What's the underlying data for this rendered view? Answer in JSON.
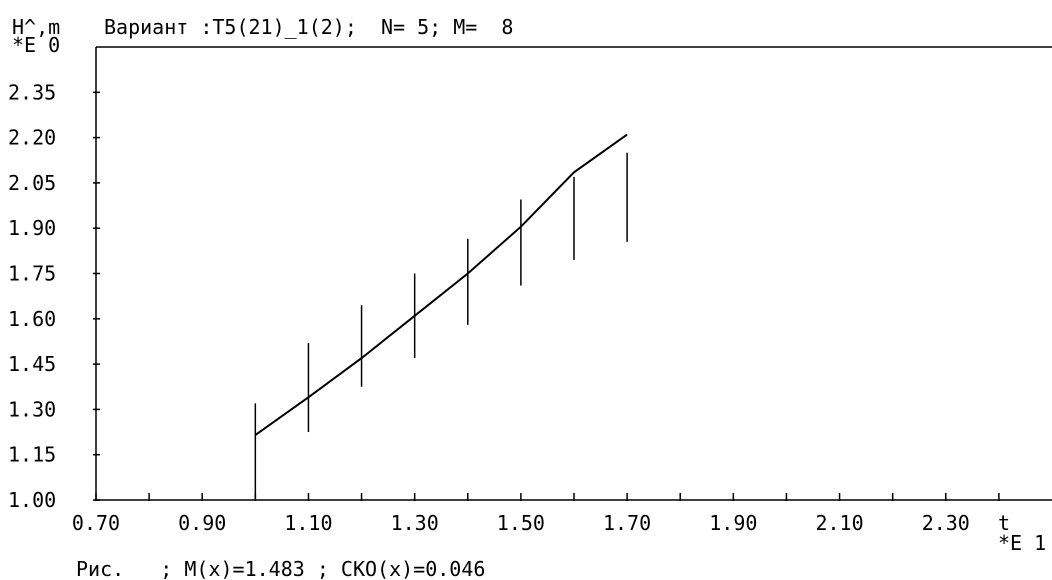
{
  "chart_data": {
    "type": "line",
    "title": "Вариант :T5(21)_1(2);  N= 5; M=  8",
    "ylabel": "H^,m",
    "y_exponent": "*E 0",
    "xlabel": "t",
    "x_exponent": "*E 1",
    "footer": "Рис.   ; M(x)=1.483 ; СКО(x)=0.046",
    "xlim": [
      0.7,
      2.5
    ],
    "ylim": [
      1.0,
      2.5
    ],
    "x_ticks": [
      0.7,
      0.8,
      0.9,
      1.0,
      1.1,
      1.2,
      1.3,
      1.4,
      1.5,
      1.6,
      1.7,
      1.8,
      1.9,
      2.0,
      2.1,
      2.2,
      2.3,
      2.4
    ],
    "x_tick_labels": [
      "0.70",
      "0.90",
      "1.10",
      "1.30",
      "1.50",
      "1.70",
      "1.90",
      "2.10",
      "2.30"
    ],
    "x_tick_label_values": [
      0.7,
      0.9,
      1.1,
      1.3,
      1.5,
      1.7,
      1.9,
      2.1,
      2.3
    ],
    "y_tick_labels": [
      "1.00",
      "1.15",
      "1.30",
      "1.45",
      "1.60",
      "1.75",
      "1.90",
      "2.05",
      "2.20",
      "2.35"
    ],
    "y_tick_values": [
      1.0,
      1.15,
      1.3,
      1.45,
      1.6,
      1.75,
      1.9,
      2.05,
      2.2,
      2.35
    ],
    "grid": false,
    "line": {
      "x": [
        1.0,
        1.1,
        1.2,
        1.3,
        1.4,
        1.5,
        1.6,
        1.7
      ],
      "y": [
        1.215,
        1.34,
        1.47,
        1.61,
        1.75,
        1.905,
        2.085,
        2.21
      ]
    },
    "error_bars": {
      "x": [
        1.0,
        1.1,
        1.2,
        1.3,
        1.4,
        1.5,
        1.6,
        1.7
      ],
      "y_low": [
        1.0,
        1.225,
        1.375,
        1.47,
        1.58,
        1.71,
        1.795,
        1.855
      ],
      "y_high": [
        1.32,
        1.52,
        1.645,
        1.75,
        1.865,
        1.995,
        2.07,
        2.15
      ]
    },
    "colors": {
      "background": "#ffffff",
      "line": "#000000",
      "axes": "#000000",
      "text": "#000000"
    }
  }
}
